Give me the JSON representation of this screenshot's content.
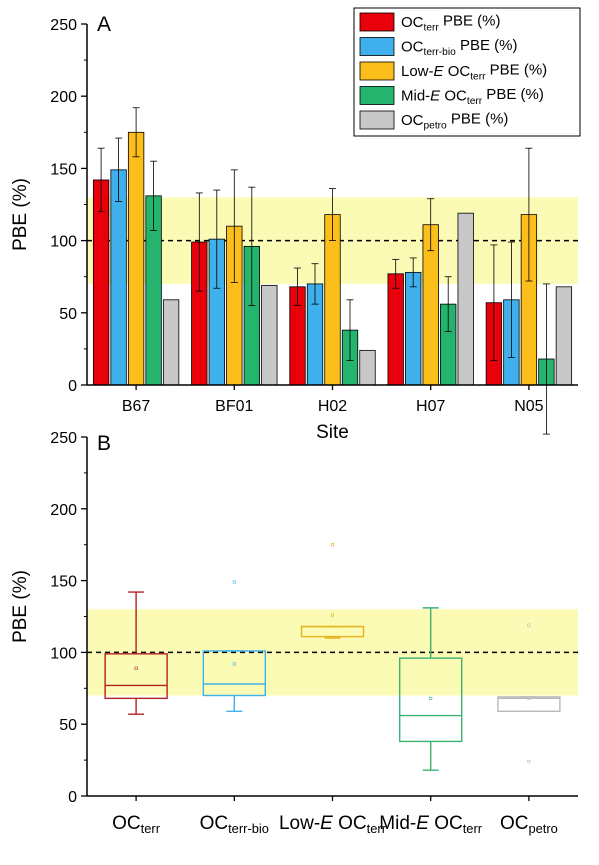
{
  "chart_data": [
    {
      "panel": "A",
      "type": "bar",
      "xlabel": "Site",
      "ylabel": "PBE (%)",
      "ylim": [
        0,
        250
      ],
      "yticks": [
        0,
        50,
        100,
        150,
        200,
        250
      ],
      "categories": [
        "B67",
        "BF01",
        "H02",
        "H07",
        "N05"
      ],
      "reference_line": 100,
      "shaded_band": [
        70,
        130
      ],
      "legend_position": "top-right",
      "series": [
        {
          "key": "terr",
          "legend": {
            "pre": "OC",
            "sub": "terr",
            "post": " PBE (%)"
          },
          "color": "#e8000b",
          "values": [
            142,
            99,
            68,
            77,
            57
          ],
          "err": [
            22,
            34,
            13,
            10,
            40
          ]
        },
        {
          "key": "terrbio",
          "legend": {
            "pre": "OC",
            "sub": "terr-bio",
            "post": " PBE (%)"
          },
          "color": "#3fb0ec",
          "values": [
            149,
            101,
            70,
            78,
            59
          ],
          "err": [
            22,
            34,
            14,
            10,
            40
          ]
        },
        {
          "key": "lowE",
          "legend": {
            "pre": "Low-",
            "it": "E",
            "mid": " OC",
            "sub": "terr",
            "post": " PBE (%)"
          },
          "color": "#fbbe1b",
          "values": [
            175,
            110,
            118,
            111,
            118
          ],
          "err": [
            17,
            39,
            18,
            18,
            46
          ]
        },
        {
          "key": "midE",
          "legend": {
            "pre": "Mid-",
            "it": "E",
            "mid": " OC",
            "sub": "terr",
            "post": " PBE (%)"
          },
          "color": "#24b46d",
          "values": [
            131,
            96,
            38,
            56,
            18
          ],
          "err": [
            24,
            41,
            21,
            19,
            52
          ]
        },
        {
          "key": "petro",
          "legend": {
            "pre": "OC",
            "sub": "petro",
            "post": " PBE (%)"
          },
          "color": "#c8c8c8",
          "values": [
            59,
            69,
            24,
            119,
            68
          ],
          "err": [
            null,
            null,
            null,
            null,
            null
          ]
        }
      ]
    },
    {
      "panel": "B",
      "type": "box",
      "ylabel": "PBE (%)",
      "ylim": [
        0,
        250
      ],
      "yticks": [
        0,
        50,
        100,
        150,
        200,
        250
      ],
      "reference_line": 100,
      "shaded_band": [
        70,
        130
      ],
      "boxes": [
        {
          "label": {
            "pre": "OC",
            "sub": "terr"
          },
          "color": "#b22222",
          "q1": 68,
          "median": 77,
          "q3": 99,
          "mean": 89,
          "whisker_low": 57,
          "whisker_high": 142,
          "outliers": []
        },
        {
          "label": {
            "pre": "OC",
            "sub": "terr-bio"
          },
          "color": "#3fb0ec",
          "q1": 70,
          "median": 78,
          "q3": 101,
          "mean": 92,
          "whisker_low": 59,
          "whisker_high": 101,
          "outliers": [
            149
          ]
        },
        {
          "label": {
            "pre": "Low-",
            "it": "E",
            "mid": " OC",
            "sub": "terr"
          },
          "color": "#e7b31c",
          "q1": 111,
          "median": 118,
          "q3": 118,
          "mean": 126,
          "whisker_low": 110,
          "whisker_high": 118,
          "outliers": [
            175
          ]
        },
        {
          "label": {
            "pre": "Mid-",
            "it": "E",
            "mid": " OC",
            "sub": "terr"
          },
          "color": "#3cb371",
          "q1": 38,
          "median": 56,
          "q3": 96,
          "mean": 68,
          "whisker_low": 18,
          "whisker_high": 131,
          "outliers": []
        },
        {
          "label": {
            "pre": "OC",
            "sub": "petro"
          },
          "color": "#b9b9b9",
          "q1": 59,
          "median": 68,
          "q3": 69,
          "mean": 68,
          "whisker_low": 59,
          "whisker_high": 69,
          "outliers": [
            119,
            24
          ]
        }
      ]
    }
  ],
  "panel_letters": {
    "a": "A",
    "b": "B"
  },
  "colors": {
    "band": "#fbfbb6",
    "axis": "#000000"
  }
}
